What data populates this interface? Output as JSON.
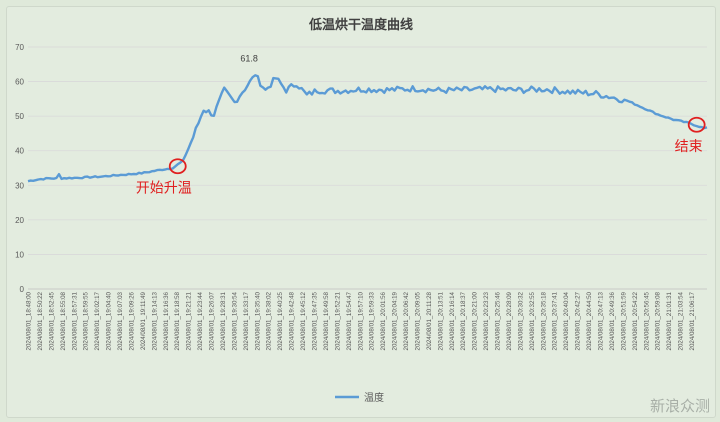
{
  "chart_data": {
    "type": "line",
    "title": "低温烘干温度曲线",
    "ylim": [
      0,
      70
    ],
    "y_ticks": [
      0,
      10,
      20,
      30,
      40,
      50,
      60,
      70
    ],
    "grid": true,
    "legend_position": "bottom",
    "series": [
      {
        "name": "温度",
        "color": "#5b9bd5",
        "keypoints": [
          {
            "i": 0,
            "v": 31.2
          },
          {
            "i": 4,
            "v": 31.7
          },
          {
            "i": 8,
            "v": 32.0
          },
          {
            "i": 12,
            "v": 32.0
          },
          {
            "i": 20,
            "v": 32.2
          },
          {
            "i": 28,
            "v": 32.5
          },
          {
            "i": 36,
            "v": 33.0
          },
          {
            "i": 44,
            "v": 33.5
          },
          {
            "i": 50,
            "v": 34.3
          },
          {
            "i": 56,
            "v": 35.0
          },
          {
            "i": 60,
            "v": 37.0
          },
          {
            "i": 64,
            "v": 44.0
          },
          {
            "i": 68,
            "v": 52.0
          },
          {
            "i": 72,
            "v": 50.5
          },
          {
            "i": 76,
            "v": 57.5
          },
          {
            "i": 80,
            "v": 54.0
          },
          {
            "i": 84,
            "v": 58.0
          },
          {
            "i": 88,
            "v": 61.8
          },
          {
            "i": 92,
            "v": 57.5
          },
          {
            "i": 96,
            "v": 61.0
          },
          {
            "i": 100,
            "v": 57.5
          },
          {
            "i": 104,
            "v": 59.5
          },
          {
            "i": 108,
            "v": 56.0
          },
          {
            "i": 112,
            "v": 57.5
          },
          {
            "i": 120,
            "v": 57.3
          },
          {
            "i": 130,
            "v": 57.8
          },
          {
            "i": 140,
            "v": 57.6
          },
          {
            "i": 150,
            "v": 58.0
          },
          {
            "i": 160,
            "v": 57.4
          },
          {
            "i": 170,
            "v": 57.6
          },
          {
            "i": 180,
            "v": 57.8
          },
          {
            "i": 190,
            "v": 57.5
          },
          {
            "i": 200,
            "v": 57.8
          },
          {
            "i": 210,
            "v": 57.0
          },
          {
            "i": 220,
            "v": 56.5
          },
          {
            "i": 226,
            "v": 55.5
          },
          {
            "i": 232,
            "v": 54.5
          },
          {
            "i": 238,
            "v": 52.5
          },
          {
            "i": 244,
            "v": 50.5
          },
          {
            "i": 250,
            "v": 49.0
          },
          {
            "i": 256,
            "v": 48.0
          },
          {
            "i": 262,
            "v": 46.5
          }
        ]
      }
    ],
    "x_labels": [
      "2024/08/01_18:48:00",
      "2024/08/01_18:50:22",
      "2024/08/01_18:52:45",
      "2024/08/01_18:55:08",
      "2024/08/01_18:57:31",
      "2024/08/01_18:59:55",
      "2024/08/01_19:02:17",
      "2024/08/01_19:04:40",
      "2024/08/01_19:07:03",
      "2024/08/01_19:09:26",
      "2024/08/01_19:11:49",
      "2024/08/01_19:14:13",
      "2024/08/01_19:16:36",
      "2024/08/01_19:18:58",
      "2024/08/01_19:21:21",
      "2024/08/01_19:23:44",
      "2024/08/01_19:26:07",
      "2024/08/01_19:28:31",
      "2024/08/01_19:30:54",
      "2024/08/01_19:33:17",
      "2024/08/01_19:35:40",
      "2024/08/01_19:38:02",
      "2024/08/01_19:40:25",
      "2024/08/01_19:42:48",
      "2024/08/01_19:45:12",
      "2024/08/01_19:47:35",
      "2024/08/01_19:49:58",
      "2024/08/01_19:52:21",
      "2024/08/01_19:54:47",
      "2024/08/01_19:57:10",
      "2024/08/01_19:59:33",
      "2024/08/01_20:01:56",
      "2024/08/01_20:04:19",
      "2024/08/01_20:06:42",
      "2024/08/01_20:09:05",
      "2024/08/01_20:11:28",
      "2024/08/01_20:13:51",
      "2024/08/01_20:16:14",
      "2024/08/01_20:18:37",
      "2024/08/01_20:21:00",
      "2024/08/01_20:23:23",
      "2024/08/01_20:25:46",
      "2024/08/01_20:28:09",
      "2024/08/01_20:30:32",
      "2024/08/01_20:32:55",
      "2024/08/01_20:35:18",
      "2024/08/01_20:37:41",
      "2024/08/01_20:40:04",
      "2024/08/01_20:42:27",
      "2024/08/01_20:44:50",
      "2024/08/01_20:47:13",
      "2024/08/01_20:49:36",
      "2024/08/01_20:51:59",
      "2024/08/01_20:54:22",
      "2024/08/01_20:56:45",
      "2024/08/01_20:59:08",
      "2024/08/01_21:01:31",
      "2024/08/01_21:03:54",
      "2024/08/01_21:06:17"
    ],
    "annotations": [
      {
        "text": "61.8",
        "i": 88,
        "v": 61.8,
        "type": "data-label"
      },
      {
        "text": "开始升温",
        "i": 58,
        "v": 35.5,
        "type": "circle-callout",
        "color": "#e02020"
      },
      {
        "text": "结束",
        "i": 259,
        "v": 47.5,
        "type": "circle-callout",
        "color": "#e02020"
      }
    ],
    "x_count": 264
  },
  "watermark": "新浪众测"
}
